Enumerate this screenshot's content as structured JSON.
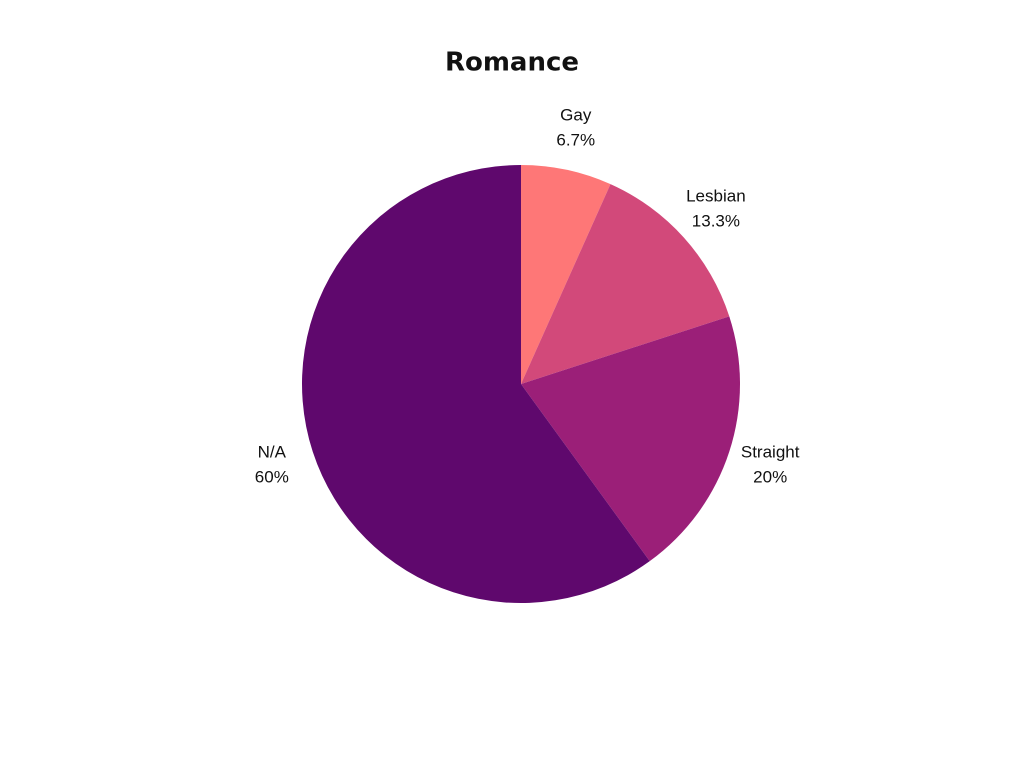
{
  "chart_data": {
    "type": "pie",
    "title": "Romance",
    "categories": [
      "Gay",
      "Lesbian",
      "Straight",
      "N/A"
    ],
    "values": [
      6.7,
      13.3,
      20,
      60
    ],
    "value_labels": [
      "6.7%",
      "13.3%",
      "20%",
      "60%"
    ],
    "colors": [
      "#fe7777",
      "#d2497a",
      "#9b1f78",
      "#5f086d"
    ]
  }
}
